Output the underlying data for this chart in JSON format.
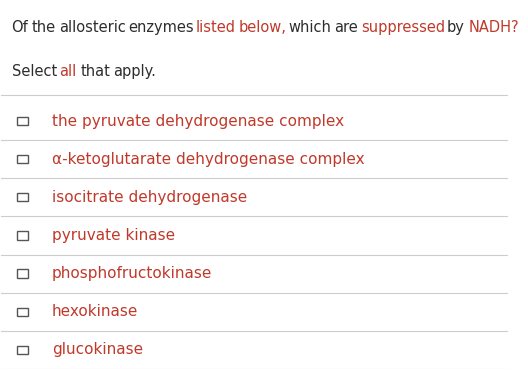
{
  "title_line1": "Of the allosteric enzymes listed below, which are suppressed by NADH?",
  "title_line2": "Select all that apply.",
  "title_color": "#2d2d2d",
  "highlight_words": [
    "listed",
    "below,",
    "suppressed",
    "NADH?",
    "all"
  ],
  "highlight_color": "#c0392b",
  "title_highlight_map": {
    "listed": "#c0392b",
    "below,": "#c0392b",
    "suppressed": "#c0392b",
    "NADH?": "#c0392b",
    "all": "#c0392b"
  },
  "options": [
    "the pyruvate dehydrogenase complex",
    "α-ketoglutarate dehydrogenase complex",
    "isocitrate dehydrogenase",
    "pyruvate kinase",
    "phosphofructokinase",
    "hexokinase",
    "glucokinase"
  ],
  "option_color": "#c0392b",
  "checkbox_color": "#555555",
  "line_color": "#cccccc",
  "background_color": "#ffffff",
  "title_fontsize": 10.5,
  "option_fontsize": 11.0
}
